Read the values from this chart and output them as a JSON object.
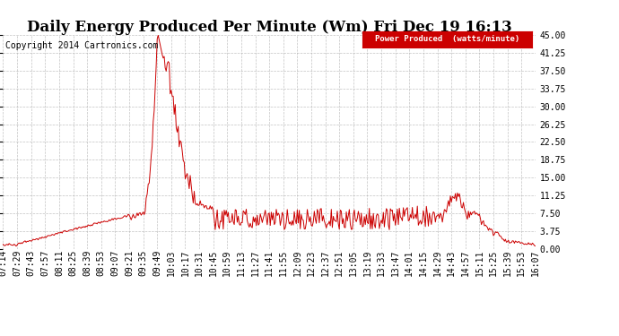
{
  "title": "Daily Energy Produced Per Minute (Wm) Fri Dec 19 16:13",
  "copyright": "Copyright 2014 Cartronics.com",
  "legend_label": "Power Produced  (watts/minute)",
  "bg_color": "#ffffff",
  "plot_bg_color": "#ffffff",
  "line_color": "#cc0000",
  "legend_bg": "#cc0000",
  "legend_text_color": "#ffffff",
  "ylim": [
    0,
    45.0
  ],
  "yticks": [
    0.0,
    3.75,
    7.5,
    11.25,
    15.0,
    18.75,
    22.5,
    26.25,
    30.0,
    33.75,
    37.5,
    41.25,
    45.0
  ],
  "title_fontsize": 12,
  "copyright_fontsize": 7,
  "tick_fontsize": 7,
  "grid_color": "#aaaaaa",
  "x_tick_labels": [
    "07:14",
    "07:29",
    "07:43",
    "07:57",
    "08:11",
    "08:25",
    "08:39",
    "08:53",
    "09:07",
    "09:21",
    "09:35",
    "09:49",
    "10:03",
    "10:17",
    "10:31",
    "10:45",
    "10:59",
    "11:13",
    "11:27",
    "11:41",
    "11:55",
    "12:09",
    "12:23",
    "12:37",
    "12:51",
    "13:05",
    "13:19",
    "13:33",
    "13:47",
    "14:01",
    "14:15",
    "14:29",
    "14:43",
    "14:57",
    "15:11",
    "15:25",
    "15:39",
    "15:53",
    "16:07"
  ]
}
